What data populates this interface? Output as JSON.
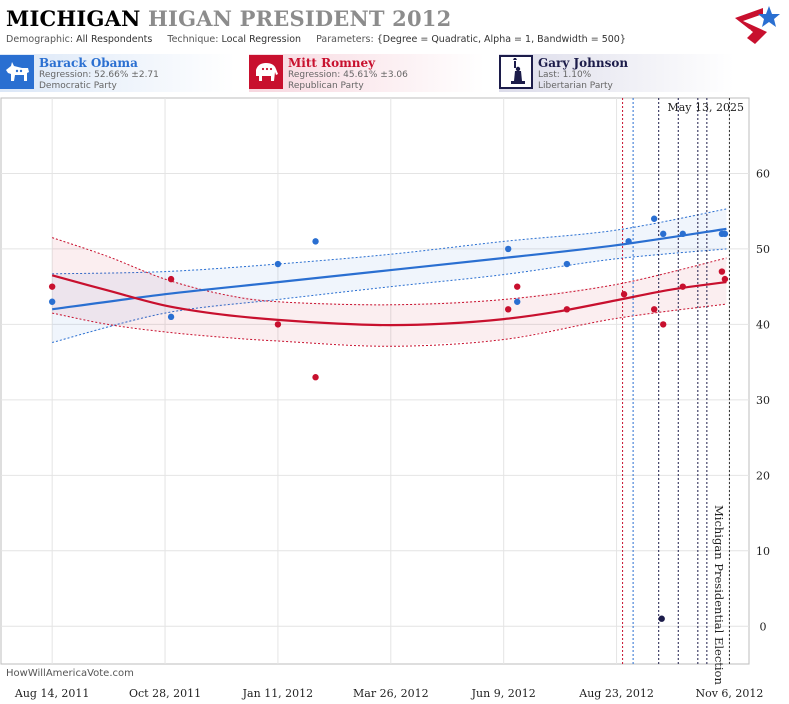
{
  "header": {
    "title_state": "MICHIGAN",
    "title_rest": "HIGAN PRESIDENT 2012",
    "demographic_label": "Demographic:",
    "demographic": "All Respondents",
    "technique_label": "Technique:",
    "technique": "Local Regression",
    "parameters_label": "Parameters:",
    "parameters": "{Degree = Quadratic, Alpha = 1, Bandwidth = 500}"
  },
  "candidates": [
    {
      "name": "Barack Obama",
      "line1": "Regression: 52.66% ±2.71",
      "line2": "Democratic Party",
      "icon": "donkey-icon",
      "color": "#2a6fd1"
    },
    {
      "name": "Mitt Romney",
      "line1": "Regression: 45.61% ±3.06",
      "line2": "Republican Party",
      "icon": "elephant-icon",
      "color": "#c8102e"
    },
    {
      "name": "Gary Johnson",
      "line1": "Last: 1.10%",
      "line2": "Libertarian Party",
      "icon": "statue-of-liberty-icon",
      "color": "#1c1c4a"
    }
  ],
  "footer": {
    "credit": "HowWillAmericaVote.com"
  },
  "chart_data": {
    "type": "scatter",
    "date_label": "May 13, 2025",
    "event_label": "Michigan Presidential Election",
    "event_date": "2012-11-06",
    "x_ticks": [
      "Aug 14, 2011",
      "Oct 28, 2011",
      "Jan 11, 2012",
      "Mar 26, 2012",
      "Jun 9, 2012",
      "Aug 23, 2012",
      "Nov 6, 2012"
    ],
    "x_tick_dates": [
      "2011-08-14",
      "2011-10-28",
      "2012-01-11",
      "2012-03-26",
      "2012-06-09",
      "2012-08-23",
      "2012-11-06"
    ],
    "y_ticks": [
      0,
      10,
      20,
      30,
      40,
      50,
      60
    ],
    "ylim": [
      -5,
      70
    ],
    "xlim": [
      "2011-07-11",
      "2012-11-19"
    ],
    "grid": true,
    "event_lines": [
      {
        "date": "2012-08-27",
        "color": "#c8102e"
      },
      {
        "date": "2012-09-03",
        "color": "#2a6fd1"
      },
      {
        "date": "2012-09-20",
        "color": "#1c1c4a"
      },
      {
        "date": "2012-10-03",
        "color": "#1c1c4a"
      },
      {
        "date": "2012-10-16",
        "color": "#1c1c4a"
      },
      {
        "date": "2012-10-22",
        "color": "#1c1c4a"
      }
    ],
    "series": [
      {
        "name": "Barack Obama",
        "color": "#2a6fd1",
        "points": [
          [
            "2011-08-14",
            43
          ],
          [
            "2011-11-01",
            41
          ],
          [
            "2012-01-11",
            48
          ],
          [
            "2012-02-05",
            51
          ],
          [
            "2012-06-12",
            50
          ],
          [
            "2012-06-18",
            43
          ],
          [
            "2012-07-21",
            48
          ],
          [
            "2012-08-31",
            51
          ],
          [
            "2012-09-17",
            54
          ],
          [
            "2012-09-23",
            52
          ],
          [
            "2012-10-06",
            52
          ],
          [
            "2012-11-01",
            52
          ],
          [
            "2012-11-03",
            52
          ]
        ],
        "trend": [
          [
            "2011-08-14",
            42
          ],
          [
            "2011-10-28",
            44
          ],
          [
            "2012-01-11",
            45.6
          ],
          [
            "2012-03-26",
            47.2
          ],
          [
            "2012-06-09",
            48.8
          ],
          [
            "2012-08-23",
            50.5
          ],
          [
            "2012-11-04",
            52.66
          ]
        ],
        "upper": [
          [
            "2011-08-14",
            46.7
          ],
          [
            "2011-10-28",
            47
          ],
          [
            "2012-01-11",
            48
          ],
          [
            "2012-03-26",
            49.3
          ],
          [
            "2012-06-09",
            51
          ],
          [
            "2012-08-23",
            52.5
          ],
          [
            "2012-11-04",
            55.3
          ]
        ],
        "lower": [
          [
            "2011-08-14",
            37.6
          ],
          [
            "2011-10-28",
            41.5
          ],
          [
            "2012-01-11",
            43.3
          ],
          [
            "2012-03-26",
            45
          ],
          [
            "2012-06-09",
            46.6
          ],
          [
            "2012-08-23",
            48.7
          ],
          [
            "2012-11-04",
            50
          ]
        ]
      },
      {
        "name": "Mitt Romney",
        "color": "#c8102e",
        "points": [
          [
            "2011-08-14",
            45
          ],
          [
            "2011-11-01",
            46
          ],
          [
            "2012-01-11",
            40
          ],
          [
            "2012-02-05",
            33
          ],
          [
            "2012-06-12",
            42
          ],
          [
            "2012-06-18",
            45
          ],
          [
            "2012-07-21",
            42
          ],
          [
            "2012-08-28",
            44
          ],
          [
            "2012-09-17",
            42
          ],
          [
            "2012-09-23",
            40
          ],
          [
            "2012-10-06",
            45
          ],
          [
            "2012-11-01",
            47
          ],
          [
            "2012-11-03",
            46
          ]
        ],
        "trend": [
          [
            "2011-08-14",
            46.5
          ],
          [
            "2011-09-20",
            44.5
          ],
          [
            "2011-10-28",
            42.5
          ],
          [
            "2011-12-05",
            41.3
          ],
          [
            "2012-01-11",
            40.6
          ],
          [
            "2012-02-20",
            40.1
          ],
          [
            "2012-03-26",
            39.9
          ],
          [
            "2012-05-01",
            40.1
          ],
          [
            "2012-06-09",
            40.7
          ],
          [
            "2012-07-15",
            41.7
          ],
          [
            "2012-08-23",
            43.2
          ],
          [
            "2012-09-28",
            44.6
          ],
          [
            "2012-11-04",
            45.61
          ]
        ],
        "upper": [
          [
            "2011-08-14",
            51.5
          ],
          [
            "2011-09-20",
            49
          ],
          [
            "2011-10-28",
            46
          ],
          [
            "2011-12-05",
            44
          ],
          [
            "2012-01-11",
            43
          ],
          [
            "2012-03-26",
            42.6
          ],
          [
            "2012-06-09",
            43.3
          ],
          [
            "2012-08-23",
            45.3
          ],
          [
            "2012-11-04",
            48.8
          ]
        ],
        "lower": [
          [
            "2011-08-14",
            41.5
          ],
          [
            "2011-09-20",
            40
          ],
          [
            "2011-10-28",
            39
          ],
          [
            "2011-12-05",
            38.3
          ],
          [
            "2012-01-11",
            37.8
          ],
          [
            "2012-03-26",
            37.1
          ],
          [
            "2012-06-09",
            38
          ],
          [
            "2012-08-23",
            40.8
          ],
          [
            "2012-11-04",
            42.7
          ]
        ]
      },
      {
        "name": "Gary Johnson",
        "color": "#1c1c4a",
        "points": [
          [
            "2012-09-22",
            1
          ]
        ]
      }
    ]
  }
}
